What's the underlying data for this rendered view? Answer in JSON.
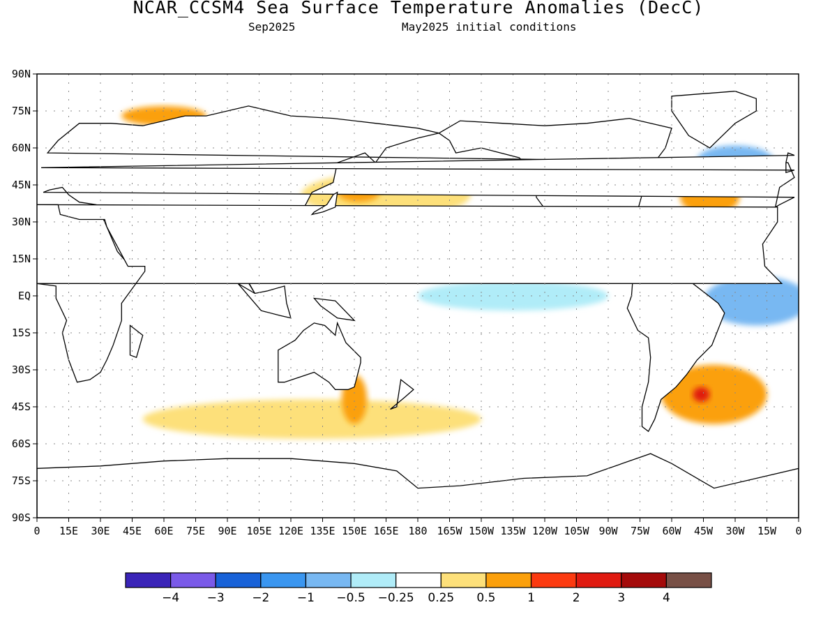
{
  "header": {
    "title": "NCAR_CCSM4 Sea Surface Temperature Anomalies (DecC)",
    "valid_month": "Sep2025",
    "initial_conditions": "May2025 initial conditions"
  },
  "map": {
    "lat_range": [
      -90,
      90
    ],
    "lon_range": [
      0,
      360
    ],
    "lat_ticks": [
      "90N",
      "75N",
      "60N",
      "45N",
      "30N",
      "15N",
      "EQ",
      "15S",
      "30S",
      "45S",
      "60S",
      "75S",
      "90S"
    ],
    "lon_ticks": [
      "0",
      "15E",
      "30E",
      "45E",
      "60E",
      "75E",
      "90E",
      "105E",
      "120E",
      "135E",
      "150E",
      "165E",
      "180",
      "165W",
      "150W",
      "135W",
      "120W",
      "105W",
      "90W",
      "75W",
      "60W",
      "45W",
      "30W",
      "15W",
      "0"
    ],
    "grid": "dotted",
    "anomaly_regions": [
      {
        "lat": 41,
        "lon": 165,
        "rlat": 9,
        "rlon": 40,
        "level": 1,
        "name": "North Pacific warm"
      },
      {
        "lat": 42,
        "lon": 152,
        "rlat": 4,
        "rlon": 10,
        "level": 2
      },
      {
        "lat": 42,
        "lon": 318,
        "rlat": 4,
        "rlon": 6,
        "level": 4,
        "name": "Northwest Atlantic hotspot"
      },
      {
        "lat": 40,
        "lon": 318,
        "rlat": 7,
        "rlon": 14,
        "level": 2
      },
      {
        "lat": 0,
        "lon": 225,
        "rlat": 6,
        "rlon": 45,
        "level": -1,
        "name": "Equatorial Pacific cool"
      },
      {
        "lat": -2,
        "lon": 340,
        "rlat": 10,
        "rlon": 25,
        "level": -2,
        "name": "Equatorial Atlantic cool"
      },
      {
        "lat": -50,
        "lon": 130,
        "rlat": 8,
        "rlon": 80,
        "level": 1,
        "name": "Southern Ocean warm"
      },
      {
        "lat": -42,
        "lon": 150,
        "rlat": 10,
        "rlon": 6,
        "level": 2
      },
      {
        "lat": -40,
        "lon": 320,
        "rlat": 12,
        "rlon": 25,
        "level": 2,
        "name": "South Atlantic warm"
      },
      {
        "lat": -40,
        "lon": 314,
        "rlat": 3,
        "rlon": 4,
        "level": 4
      },
      {
        "lat": 73,
        "lon": 60,
        "rlat": 4,
        "rlon": 20,
        "level": 2,
        "name": "Barents Sea warm"
      },
      {
        "lat": 55,
        "lon": 330,
        "rlat": 6,
        "rlon": 18,
        "level": -2,
        "name": "Subpolar North Atlantic cool"
      }
    ]
  },
  "colorbar": {
    "colors": [
      "#3a24b8",
      "#7a5ae8",
      "#1862d8",
      "#3a96f0",
      "#78b8f2",
      "#b0ecf8",
      "#ffffff",
      "#fde07a",
      "#fba00c",
      "#fc3a10",
      "#e01a10",
      "#a40a0a",
      "#785046"
    ],
    "labels": [
      "−4",
      "−3",
      "−2",
      "−1",
      "−0.5",
      "−0.25",
      "0.25",
      "0.5",
      "1",
      "2",
      "3",
      "4"
    ]
  }
}
